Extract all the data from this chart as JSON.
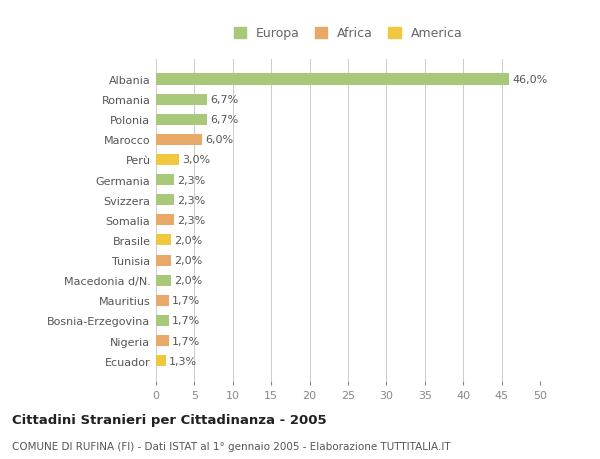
{
  "categories": [
    "Albania",
    "Romania",
    "Polonia",
    "Marocco",
    "Perù",
    "Germania",
    "Svizzera",
    "Somalia",
    "Brasile",
    "Tunisia",
    "Macedonia d/N.",
    "Mauritius",
    "Bosnia-Erzegovina",
    "Nigeria",
    "Ecuador"
  ],
  "values": [
    46.0,
    6.7,
    6.7,
    6.0,
    3.0,
    2.3,
    2.3,
    2.3,
    2.0,
    2.0,
    2.0,
    1.7,
    1.7,
    1.7,
    1.3
  ],
  "labels": [
    "46,0%",
    "6,7%",
    "6,7%",
    "6,0%",
    "3,0%",
    "2,3%",
    "2,3%",
    "2,3%",
    "2,0%",
    "2,0%",
    "2,0%",
    "1,7%",
    "1,7%",
    "1,7%",
    "1,3%"
  ],
  "continents": [
    "Europa",
    "Europa",
    "Europa",
    "Africa",
    "America",
    "Europa",
    "Europa",
    "Africa",
    "America",
    "Africa",
    "Europa",
    "Africa",
    "Europa",
    "Africa",
    "America"
  ],
  "colors": {
    "Europa": "#a8c87a",
    "Africa": "#e8a868",
    "America": "#f0c840"
  },
  "xlim": [
    0,
    50
  ],
  "xticks": [
    0,
    5,
    10,
    15,
    20,
    25,
    30,
    35,
    40,
    45,
    50
  ],
  "title": "Cittadini Stranieri per Cittadinanza - 2005",
  "subtitle": "COMUNE DI RUFINA (FI) - Dati ISTAT al 1° gennaio 2005 - Elaborazione TUTTITALIA.IT",
  "background_color": "#ffffff",
  "grid_color": "#cccccc",
  "bar_height": 0.55,
  "label_fontsize": 8,
  "ytick_fontsize": 8,
  "xtick_fontsize": 8
}
